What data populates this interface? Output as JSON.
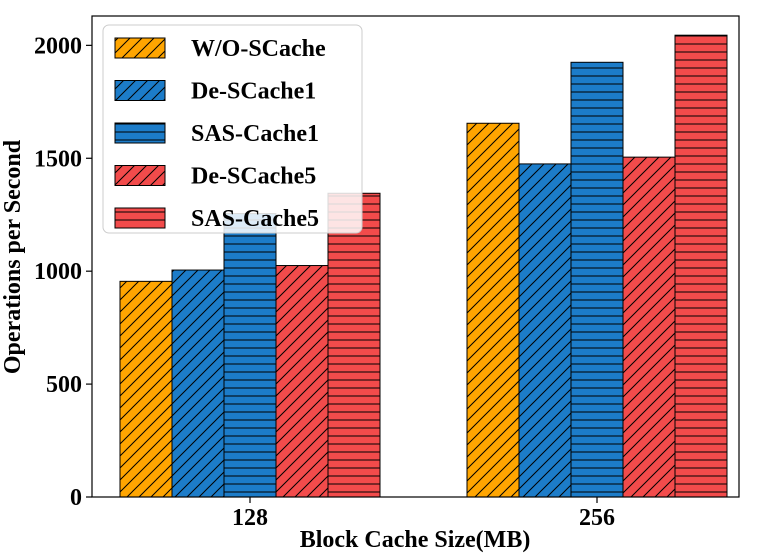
{
  "chart_data": {
    "type": "bar",
    "title": "",
    "xlabel": "Block Cache Size(MB)",
    "ylabel": "Operations per Second",
    "categories": [
      "128",
      "256"
    ],
    "ylim": [
      0,
      2130
    ],
    "yticks": [
      0,
      500,
      1000,
      1500,
      2000
    ],
    "grid": false,
    "legend_position": "top-left",
    "series": [
      {
        "name": "W/O-SCache",
        "values": [
          955,
          1655
        ],
        "color": "#FFA500",
        "hatch": "diagonal"
      },
      {
        "name": "De-SCache1",
        "values": [
          1005,
          1475
        ],
        "color": "#1C7CC9",
        "hatch": "diagonal"
      },
      {
        "name": "SAS-Cache1",
        "values": [
          1255,
          1925
        ],
        "color": "#1C7CC9",
        "hatch": "horizontal"
      },
      {
        "name": "De-SCache5",
        "values": [
          1025,
          1505
        ],
        "color": "#F24B4B",
        "hatch": "diagonal"
      },
      {
        "name": "SAS-Cache5",
        "values": [
          1345,
          2045
        ],
        "color": "#F24B4B",
        "hatch": "horizontal"
      }
    ]
  }
}
